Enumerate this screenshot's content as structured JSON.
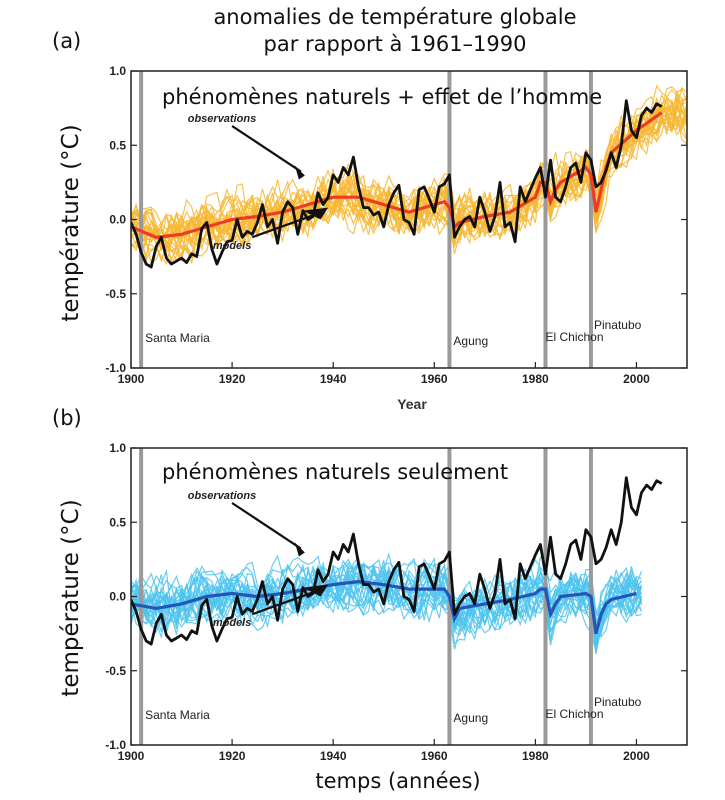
{
  "figure": {
    "title_line1": "anomalies de température globale",
    "title_line2": "par rapport à 1961–1990",
    "x_axis_label_b": "temps (années)"
  },
  "colors": {
    "model_runs_a": "#f7b733",
    "model_mean_a": "#ee3b23",
    "model_runs_b": "#4dc4ee",
    "model_mean_b": "#2456b8",
    "observations": "#111111",
    "volcano_lines": "#9a9a9a"
  },
  "chart_data": [
    {
      "type": "line",
      "panel_label": "(a)",
      "heading": "phénomènes naturels + effet de l’homme",
      "xlabel": "Year",
      "ylabel": "température (°C)",
      "xlim": [
        1900,
        2010
      ],
      "ylim": [
        -1.0,
        1.0
      ],
      "x_ticks": [
        1900,
        1920,
        1940,
        1960,
        1980,
        2000
      ],
      "y_ticks": [
        "1.0",
        "0.5",
        "0.0",
        "-0.5",
        "-1.0"
      ],
      "grid": false,
      "volcanoes": [
        {
          "name": "Santa Maria",
          "year": 1902
        },
        {
          "name": "Agung",
          "year": 1963
        },
        {
          "name": "El Chichon",
          "year": 1982
        },
        {
          "name": "Pinatubo",
          "year": 1991
        }
      ],
      "annotations": [
        {
          "text": "observations",
          "x": 1934,
          "y": 0.35
        },
        {
          "text": "models",
          "x": 1933,
          "y": -0.05
        }
      ],
      "series": [
        {
          "name": "observations",
          "role": "observations",
          "x": [
            1900,
            1901,
            1902,
            1903,
            1904,
            1905,
            1906,
            1907,
            1908,
            1909,
            1910,
            1911,
            1912,
            1913,
            1914,
            1915,
            1916,
            1917,
            1918,
            1919,
            1920,
            1921,
            1922,
            1923,
            1924,
            1925,
            1926,
            1927,
            1928,
            1929,
            1930,
            1931,
            1932,
            1933,
            1934,
            1935,
            1936,
            1937,
            1938,
            1939,
            1940,
            1941,
            1942,
            1943,
            1944,
            1945,
            1946,
            1947,
            1948,
            1949,
            1950,
            1951,
            1952,
            1953,
            1954,
            1955,
            1956,
            1957,
            1958,
            1959,
            1960,
            1961,
            1962,
            1963,
            1964,
            1965,
            1966,
            1967,
            1968,
            1969,
            1970,
            1971,
            1972,
            1973,
            1974,
            1975,
            1976,
            1977,
            1978,
            1979,
            1980,
            1981,
            1982,
            1983,
            1984,
            1985,
            1986,
            1987,
            1988,
            1989,
            1990,
            1991,
            1992,
            1993,
            1994,
            1995,
            1996,
            1997,
            1998,
            1999,
            2000,
            2001,
            2002,
            2003,
            2004,
            2005
          ],
          "values": [
            -0.02,
            -0.1,
            -0.22,
            -0.3,
            -0.32,
            -0.18,
            -0.12,
            -0.26,
            -0.3,
            -0.28,
            -0.26,
            -0.29,
            -0.23,
            -0.25,
            -0.06,
            -0.02,
            -0.2,
            -0.3,
            -0.22,
            -0.15,
            -0.14,
            0.0,
            -0.12,
            -0.08,
            -0.1,
            -0.02,
            0.1,
            -0.05,
            0.0,
            -0.16,
            0.05,
            0.12,
            0.08,
            -0.1,
            0.06,
            0.0,
            0.02,
            0.18,
            0.1,
            0.15,
            0.3,
            0.25,
            0.35,
            0.3,
            0.42,
            0.22,
            0.08,
            0.08,
            0.03,
            0.05,
            -0.05,
            0.1,
            0.18,
            0.23,
            0.0,
            -0.02,
            -0.1,
            0.2,
            0.22,
            0.14,
            0.05,
            0.22,
            0.24,
            0.3,
            -0.12,
            -0.05,
            0.0,
            0.02,
            -0.05,
            0.15,
            0.05,
            -0.08,
            0.02,
            0.25,
            -0.05,
            -0.02,
            -0.15,
            0.22,
            0.12,
            0.2,
            0.28,
            0.35,
            0.15,
            0.4,
            0.15,
            0.12,
            0.22,
            0.35,
            0.38,
            0.25,
            0.45,
            0.4,
            0.22,
            0.25,
            0.33,
            0.45,
            0.35,
            0.5,
            0.8,
            0.6,
            0.55,
            0.7,
            0.75,
            0.72,
            0.78,
            0.76
          ]
        },
        {
          "name": "models",
          "role": "mean",
          "x": [
            1900,
            1905,
            1910,
            1915,
            1920,
            1925,
            1930,
            1935,
            1940,
            1945,
            1950,
            1955,
            1960,
            1962,
            1963,
            1964,
            1965,
            1970,
            1975,
            1980,
            1981,
            1982,
            1983,
            1984,
            1985,
            1990,
            1991,
            1992,
            1993,
            1994,
            1995,
            2000,
            2005
          ],
          "values": [
            -0.05,
            -0.12,
            -0.1,
            -0.05,
            0.0,
            0.02,
            0.05,
            0.1,
            0.15,
            0.15,
            0.1,
            0.05,
            0.1,
            0.12,
            0.08,
            -0.05,
            -0.02,
            0.02,
            0.05,
            0.15,
            0.25,
            0.25,
            0.12,
            0.2,
            0.25,
            0.35,
            0.3,
            0.05,
            0.2,
            0.35,
            0.45,
            0.6,
            0.72
          ]
        }
      ]
    },
    {
      "type": "line",
      "panel_label": "(b)",
      "heading": "phénomènes naturels seulement",
      "xlabel": "temps (années)",
      "ylabel": "température (°C)",
      "xlim": [
        1900,
        2010
      ],
      "ylim": [
        -1.0,
        1.0
      ],
      "x_ticks": [
        1900,
        1920,
        1940,
        1960,
        1980,
        2000
      ],
      "y_ticks": [
        "1.0",
        "0.5",
        "0.0",
        "-0.5",
        "-1.0"
      ],
      "grid": false,
      "volcanoes": [
        {
          "name": "Santa Maria",
          "year": 1902
        },
        {
          "name": "Agung",
          "year": 1963
        },
        {
          "name": "El Chichon",
          "year": 1982
        },
        {
          "name": "Pinatubo",
          "year": 1991
        }
      ],
      "annotations": [
        {
          "text": "observations",
          "x": 1934,
          "y": 0.35
        },
        {
          "text": "models",
          "x": 1933,
          "y": -0.05
        }
      ],
      "series": [
        {
          "name": "observations",
          "role": "observations",
          "x": [
            1900,
            1901,
            1902,
            1903,
            1904,
            1905,
            1906,
            1907,
            1908,
            1909,
            1910,
            1911,
            1912,
            1913,
            1914,
            1915,
            1916,
            1917,
            1918,
            1919,
            1920,
            1921,
            1922,
            1923,
            1924,
            1925,
            1926,
            1927,
            1928,
            1929,
            1930,
            1931,
            1932,
            1933,
            1934,
            1935,
            1936,
            1937,
            1938,
            1939,
            1940,
            1941,
            1942,
            1943,
            1944,
            1945,
            1946,
            1947,
            1948,
            1949,
            1950,
            1951,
            1952,
            1953,
            1954,
            1955,
            1956,
            1957,
            1958,
            1959,
            1960,
            1961,
            1962,
            1963,
            1964,
            1965,
            1966,
            1967,
            1968,
            1969,
            1970,
            1971,
            1972,
            1973,
            1974,
            1975,
            1976,
            1977,
            1978,
            1979,
            1980,
            1981,
            1982,
            1983,
            1984,
            1985,
            1986,
            1987,
            1988,
            1989,
            1990,
            1991,
            1992,
            1993,
            1994,
            1995,
            1996,
            1997,
            1998,
            1999,
            2000,
            2001,
            2002,
            2003,
            2004,
            2005
          ],
          "values": [
            -0.02,
            -0.1,
            -0.22,
            -0.3,
            -0.32,
            -0.18,
            -0.12,
            -0.26,
            -0.3,
            -0.28,
            -0.26,
            -0.29,
            -0.23,
            -0.25,
            -0.06,
            -0.02,
            -0.2,
            -0.3,
            -0.22,
            -0.15,
            -0.14,
            0.0,
            -0.12,
            -0.08,
            -0.1,
            -0.02,
            0.1,
            -0.05,
            0.0,
            -0.16,
            0.05,
            0.12,
            0.08,
            -0.1,
            0.06,
            0.0,
            0.02,
            0.18,
            0.1,
            0.15,
            0.3,
            0.25,
            0.35,
            0.3,
            0.42,
            0.22,
            0.08,
            0.08,
            0.03,
            0.05,
            -0.05,
            0.1,
            0.18,
            0.23,
            0.0,
            -0.02,
            -0.1,
            0.2,
            0.22,
            0.14,
            0.05,
            0.22,
            0.24,
            0.3,
            -0.12,
            -0.05,
            0.0,
            0.02,
            -0.05,
            0.15,
            0.05,
            -0.08,
            0.02,
            0.25,
            -0.05,
            -0.02,
            -0.15,
            0.22,
            0.12,
            0.2,
            0.28,
            0.35,
            0.15,
            0.4,
            0.15,
            0.12,
            0.22,
            0.35,
            0.38,
            0.25,
            0.45,
            0.4,
            0.22,
            0.25,
            0.33,
            0.45,
            0.35,
            0.5,
            0.8,
            0.6,
            0.55,
            0.7,
            0.75,
            0.72,
            0.78,
            0.76
          ]
        },
        {
          "name": "models",
          "role": "mean",
          "x": [
            1900,
            1905,
            1910,
            1915,
            1920,
            1925,
            1930,
            1935,
            1940,
            1945,
            1950,
            1955,
            1960,
            1962,
            1963,
            1964,
            1965,
            1970,
            1975,
            1980,
            1981,
            1982,
            1983,
            1984,
            1985,
            1990,
            1991,
            1992,
            1993,
            1994,
            1995,
            2000
          ],
          "values": [
            -0.05,
            -0.08,
            -0.05,
            0.0,
            0.02,
            0.0,
            0.02,
            0.05,
            0.08,
            0.1,
            0.08,
            0.05,
            0.05,
            0.05,
            0.0,
            -0.15,
            -0.08,
            -0.05,
            -0.02,
            0.02,
            0.05,
            0.05,
            -0.12,
            -0.05,
            0.0,
            0.02,
            0.0,
            -0.25,
            -0.12,
            -0.05,
            -0.02,
            0.02
          ]
        }
      ]
    }
  ]
}
